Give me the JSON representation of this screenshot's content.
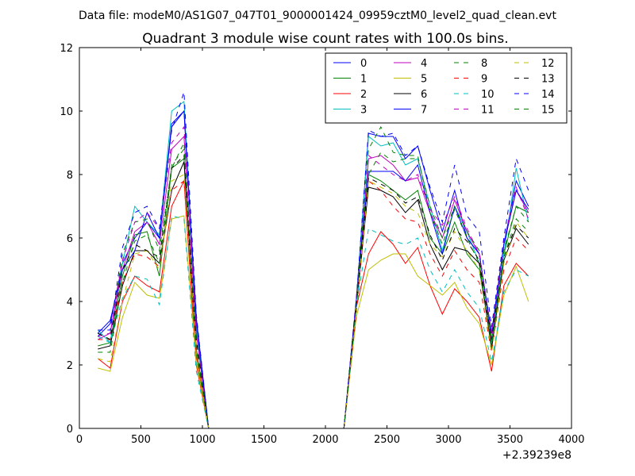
{
  "suptitle": "Data file: modeM0/AS1G07_047T01_9000001424_09959cztM0_level2_quad_clean.evt",
  "chart_data": {
    "type": "line",
    "title": "Quadrant 3 module wise count rates with 100.0s bins.",
    "xlabel": "",
    "ylabel": "",
    "xlim": [
      0,
      4000
    ],
    "ylim": [
      0,
      12
    ],
    "x_offset_label": "+2.39239e8",
    "xticks": [
      "0",
      "500",
      "1000",
      "1500",
      "2000",
      "2500",
      "3000",
      "3500",
      "4000"
    ],
    "yticks": [
      "0",
      "2",
      "4",
      "6",
      "8",
      "10",
      "12"
    ],
    "legend_position": "top-right",
    "grid": false,
    "x": [
      150,
      250,
      350,
      450,
      550,
      650,
      750,
      850,
      950,
      1050,
      1150,
      1250,
      1350,
      1450,
      1550,
      1650,
      1750,
      1850,
      1950,
      2050,
      2150,
      2250,
      2350,
      2450,
      2550,
      2650,
      2750,
      2850,
      2950,
      3050,
      3150,
      3250,
      3350,
      3450,
      3550,
      3650
    ],
    "series": [
      {
        "name": "0",
        "color": "#0000ff",
        "dash": "solid",
        "values": [
          2.9,
          3.3,
          5.2,
          6.0,
          6.5,
          6.0,
          9.5,
          10.0,
          3.5,
          0,
          0,
          0,
          0,
          0,
          0,
          0,
          0,
          0,
          0,
          0,
          0,
          4.0,
          9.3,
          9.2,
          9.2,
          8.5,
          8.9,
          7.5,
          6.2,
          7.5,
          6.0,
          5.5,
          3.0,
          5.8,
          7.8,
          7.0
        ]
      },
      {
        "name": "1",
        "color": "#008000",
        "dash": "solid",
        "values": [
          2.6,
          2.7,
          4.8,
          6.1,
          6.2,
          4.8,
          8.2,
          8.5,
          2.3,
          0,
          0,
          0,
          0,
          0,
          0,
          0,
          0,
          0,
          0,
          0,
          0,
          3.8,
          8.0,
          7.8,
          7.5,
          7.2,
          7.5,
          6.0,
          5.5,
          6.5,
          5.5,
          5.0,
          2.7,
          5.5,
          7.0,
          6.8
        ]
      },
      {
        "name": "2",
        "color": "#ff0000",
        "dash": "solid",
        "values": [
          2.2,
          1.9,
          4.0,
          4.8,
          4.5,
          4.3,
          7.0,
          7.8,
          2.0,
          0,
          0,
          0,
          0,
          0,
          0,
          0,
          0,
          0,
          0,
          0,
          0,
          3.8,
          5.5,
          6.2,
          5.8,
          5.2,
          5.7,
          4.5,
          3.6,
          4.4,
          4.0,
          3.5,
          1.8,
          4.5,
          5.2,
          4.8
        ]
      },
      {
        "name": "3",
        "color": "#00bfbf",
        "dash": "solid",
        "values": [
          3.1,
          2.7,
          5.2,
          7.0,
          6.5,
          6.1,
          10.0,
          10.3,
          3.2,
          0,
          0,
          0,
          0,
          0,
          0,
          0,
          0,
          0,
          0,
          0,
          0,
          4.0,
          9.2,
          8.9,
          9.0,
          8.3,
          8.5,
          7.0,
          5.6,
          7.0,
          6.2,
          5.2,
          2.6,
          5.5,
          8.2,
          6.5
        ]
      },
      {
        "name": "4",
        "color": "#bf00bf",
        "dash": "solid",
        "values": [
          2.8,
          3.0,
          5.0,
          6.2,
          6.5,
          5.8,
          8.8,
          9.2,
          3.0,
          0,
          0,
          0,
          0,
          0,
          0,
          0,
          0,
          0,
          0,
          0,
          0,
          4.0,
          8.5,
          8.6,
          8.3,
          7.8,
          7.9,
          6.8,
          6.0,
          7.2,
          6.2,
          5.5,
          2.8,
          5.8,
          7.5,
          6.8
        ]
      },
      {
        "name": "5",
        "color": "#bfbf00",
        "dash": "solid",
        "values": [
          1.9,
          1.8,
          3.5,
          4.6,
          4.2,
          4.1,
          6.6,
          6.7,
          2.1,
          0,
          0,
          0,
          0,
          0,
          0,
          0,
          0,
          0,
          0,
          0,
          0,
          3.5,
          5.0,
          5.3,
          5.5,
          5.5,
          4.8,
          4.5,
          4.2,
          4.6,
          3.8,
          3.3,
          2.0,
          4.2,
          5.1,
          4.0
        ]
      },
      {
        "name": "6",
        "color": "#000000",
        "dash": "solid",
        "values": [
          2.5,
          2.6,
          4.5,
          5.6,
          5.6,
          5.2,
          7.5,
          8.4,
          2.5,
          0,
          0,
          0,
          0,
          0,
          0,
          0,
          0,
          0,
          0,
          0,
          0,
          3.8,
          7.6,
          7.5,
          7.3,
          6.8,
          7.2,
          5.8,
          5.0,
          5.7,
          5.6,
          5.2,
          2.5,
          5.3,
          6.3,
          5.8
        ]
      },
      {
        "name": "7",
        "color": "#0000ff",
        "dash": "solid",
        "values": [
          3.0,
          3.4,
          5.0,
          5.6,
          6.8,
          6.0,
          9.6,
          10.0,
          3.4,
          0,
          0,
          0,
          0,
          0,
          0,
          0,
          0,
          0,
          0,
          0,
          0,
          4.0,
          8.1,
          8.1,
          8.1,
          7.8,
          8.3,
          6.8,
          5.5,
          7.0,
          6.0,
          5.5,
          3.0,
          5.8,
          7.5,
          6.9
        ]
      },
      {
        "name": "8",
        "color": "#008000",
        "dash": "dashed",
        "values": [
          3.0,
          2.8,
          5.5,
          6.5,
          6.6,
          5.6,
          8.2,
          9.0,
          2.5,
          0,
          0,
          0,
          0,
          0,
          0,
          0,
          0,
          0,
          0,
          0,
          0,
          4.0,
          8.0,
          8.7,
          8.4,
          8.5,
          8.5,
          7.0,
          6.0,
          7.0,
          6.2,
          5.6,
          2.8,
          5.6,
          7.0,
          6.5
        ]
      },
      {
        "name": "9",
        "color": "#ff0000",
        "dash": "dashed",
        "values": [
          2.8,
          2.8,
          4.6,
          5.5,
          5.4,
          5.1,
          7.5,
          7.8,
          2.3,
          0,
          0,
          0,
          0,
          0,
          0,
          0,
          0,
          0,
          0,
          0,
          0,
          3.6,
          7.8,
          7.5,
          7.0,
          6.6,
          6.5,
          5.5,
          4.8,
          5.6,
          5.0,
          4.6,
          2.4,
          5.0,
          6.0,
          5.6
        ]
      },
      {
        "name": "10",
        "color": "#00bfbf",
        "dash": "dashed",
        "values": [
          2.9,
          2.7,
          4.1,
          4.8,
          4.7,
          3.9,
          6.7,
          6.6,
          1.8,
          0,
          0,
          0,
          0,
          0,
          0,
          0,
          0,
          0,
          0,
          0,
          0,
          3.8,
          6.3,
          6.1,
          5.9,
          5.8,
          6.0,
          5.0,
          4.3,
          5.0,
          4.3,
          3.8,
          2.1,
          4.3,
          5.0,
          4.8
        ]
      },
      {
        "name": "11",
        "color": "#bf00bf",
        "dash": "dashed",
        "values": [
          2.9,
          3.0,
          5.3,
          6.5,
          6.8,
          6.3,
          9.0,
          9.5,
          3.0,
          0,
          0,
          0,
          0,
          0,
          0,
          0,
          0,
          0,
          0,
          0,
          0,
          4.1,
          8.6,
          8.3,
          8.0,
          7.8,
          8.0,
          6.9,
          6.4,
          7.3,
          6.3,
          5.5,
          3.0,
          5.9,
          7.6,
          6.6
        ]
      },
      {
        "name": "12",
        "color": "#bfbf00",
        "dash": "dashed",
        "values": [
          2.2,
          2.1,
          4.0,
          5.5,
          5.6,
          5.0,
          7.8,
          8.0,
          2.4,
          0,
          0,
          0,
          0,
          0,
          0,
          0,
          0,
          0,
          0,
          0,
          0,
          3.8,
          7.8,
          7.6,
          7.4,
          7.0,
          6.8,
          5.8,
          5.4,
          6.2,
          5.6,
          5.0,
          2.4,
          5.2,
          6.5,
          6.0
        ]
      },
      {
        "name": "13",
        "color": "#000000",
        "dash": "dashed",
        "values": [
          3.0,
          2.8,
          5.0,
          5.8,
          5.6,
          5.4,
          8.2,
          8.6,
          2.8,
          0,
          0,
          0,
          0,
          0,
          0,
          0,
          0,
          0,
          0,
          0,
          0,
          4.0,
          7.9,
          7.7,
          7.5,
          7.1,
          7.3,
          6.1,
          5.3,
          6.3,
          5.9,
          5.3,
          2.8,
          5.4,
          6.4,
          6.0
        ]
      },
      {
        "name": "14",
        "color": "#0000ff",
        "dash": "dashed",
        "values": [
          3.1,
          3.1,
          5.7,
          6.8,
          7.0,
          6.3,
          9.4,
          10.6,
          3.6,
          0,
          0,
          0,
          0,
          0,
          0,
          0,
          0,
          0,
          0,
          0,
          0,
          4.0,
          9.4,
          9.2,
          9.3,
          8.6,
          8.9,
          7.6,
          6.5,
          8.3,
          6.7,
          6.2,
          3.2,
          6.0,
          8.5,
          7.5
        ]
      },
      {
        "name": "15",
        "color": "#008000",
        "dash": "dashed",
        "values": [
          2.4,
          2.4,
          4.6,
          5.9,
          6.1,
          5.2,
          8.3,
          8.8,
          2.6,
          0,
          0,
          0,
          0,
          0,
          0,
          0,
          0,
          0,
          0,
          0,
          0,
          3.8,
          8.8,
          9.5,
          8.7,
          8.6,
          8.6,
          6.8,
          5.8,
          6.9,
          6.0,
          5.2,
          2.6,
          5.4,
          6.6,
          6.2
        ]
      }
    ]
  }
}
